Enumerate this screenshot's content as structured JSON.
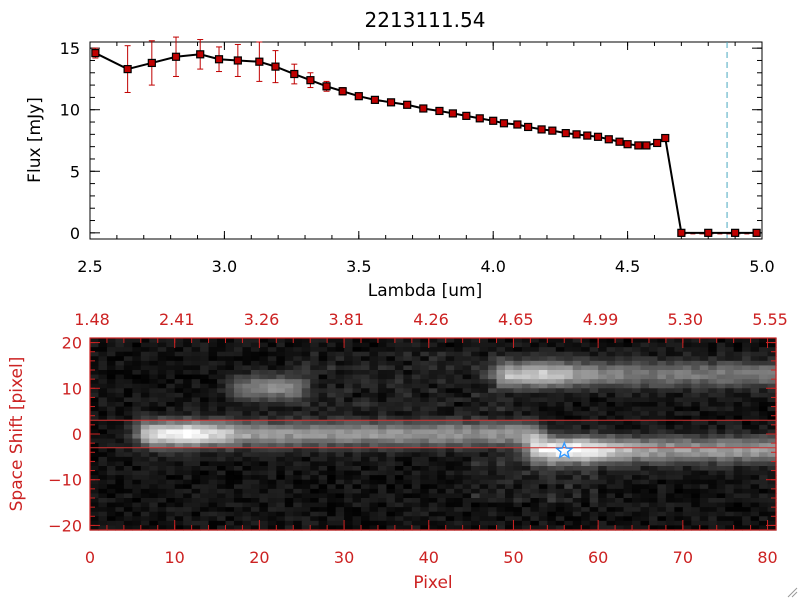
{
  "chart_data": [
    {
      "type": "line",
      "title": "2213111.54",
      "xlabel": "Lambda [um]",
      "ylabel": "Flux [mJy]",
      "xlim": [
        2.5,
        5.0
      ],
      "ylim": [
        -0.5,
        15.5
      ],
      "x_ticks": [
        "2.5",
        "3.0",
        "3.5",
        "4.0",
        "4.5",
        "5.0"
      ],
      "y_ticks": [
        "0",
        "5",
        "10",
        "15"
      ],
      "colors": {
        "line": "#000000",
        "marker": "#c00000",
        "errorbar": "#c00000",
        "dashed_marker": "#4aa8c0"
      },
      "dashed_vertical_x": 4.87,
      "series": [
        {
          "x": [
            2.52,
            2.64,
            2.73,
            2.82,
            2.91,
            2.98,
            3.05,
            3.13,
            3.19,
            3.26,
            3.32,
            3.38,
            3.44,
            3.5,
            3.56,
            3.62,
            3.68,
            3.74,
            3.8,
            3.85,
            3.9,
            3.95,
            4.0,
            4.04,
            4.09,
            4.13,
            4.18,
            4.22,
            4.27,
            4.31,
            4.35,
            4.39,
            4.43,
            4.47,
            4.5,
            4.54,
            4.57,
            4.61,
            4.64,
            4.7,
            4.8,
            4.9,
            4.98
          ],
          "y": [
            14.6,
            13.3,
            13.8,
            14.3,
            14.5,
            14.1,
            14.0,
            13.9,
            13.5,
            12.9,
            12.4,
            11.9,
            11.5,
            11.1,
            10.8,
            10.6,
            10.4,
            10.1,
            9.9,
            9.7,
            9.5,
            9.3,
            9.1,
            8.9,
            8.8,
            8.6,
            8.4,
            8.3,
            8.1,
            8.0,
            7.9,
            7.8,
            7.6,
            7.4,
            7.2,
            7.1,
            7.1,
            7.3,
            7.7,
            0,
            0,
            0,
            0
          ],
          "err": [
            0.4,
            1.9,
            1.8,
            1.6,
            1.2,
            1.0,
            1.3,
            1.6,
            1.3,
            0.8,
            0.6,
            0.4,
            0.3,
            0,
            0,
            0,
            0,
            0,
            0,
            0,
            0,
            0,
            0,
            0,
            0,
            0,
            0,
            0,
            0,
            0,
            0,
            0,
            0,
            0,
            0,
            0,
            0,
            0,
            0.2,
            0,
            0,
            0,
            0
          ]
        }
      ]
    },
    {
      "type": "heatmap",
      "xlabel": "Pixel",
      "ylabel": "Space Shift [pixel]",
      "xlim": [
        0,
        81
      ],
      "ylim": [
        -21,
        21
      ],
      "x_ticks": [
        "0",
        "10",
        "20",
        "30",
        "40",
        "50",
        "60",
        "70",
        "80"
      ],
      "y_ticks": [
        "20",
        "10",
        "0",
        "−10",
        "−20"
      ],
      "top_axis_ticks": [
        "1.48",
        "2.41",
        "3.26",
        "3.81",
        "4.26",
        "4.65",
        "4.99",
        "5.30",
        "5.55"
      ],
      "extraction_lines_y": [
        3,
        -3
      ],
      "marker": {
        "pixel": 56,
        "shift": -3.7,
        "symbol": "star"
      },
      "colors": {
        "axes": "#cc2222",
        "extraction_line": "#d03030",
        "marker": "#3399ff"
      },
      "sources": [
        {
          "x0": 7,
          "x1": 52,
          "y": 0,
          "peak": 240
        },
        {
          "x0": 53,
          "x1": 81,
          "y": -3.5,
          "peak": 250
        },
        {
          "x0": 18,
          "x1": 24,
          "y": 10,
          "peak": 120
        },
        {
          "x0": 49,
          "x1": 81,
          "y": 13,
          "peak": 190
        }
      ]
    }
  ]
}
